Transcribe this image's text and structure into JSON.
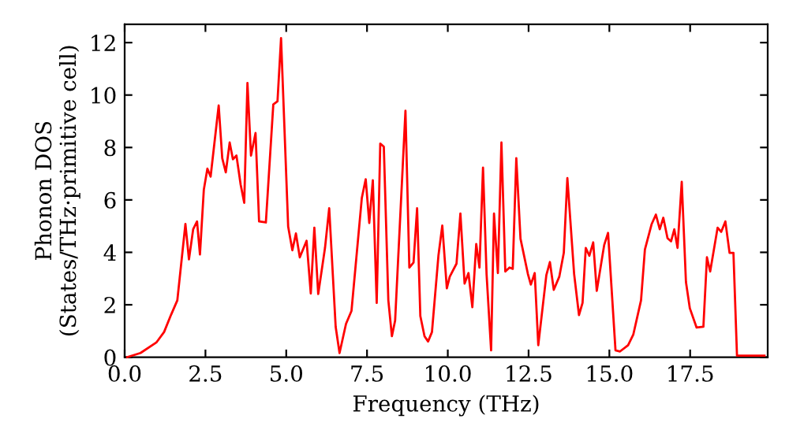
{
  "chart_data": {
    "type": "line",
    "xlabel": "Frequency (THz)",
    "ylabel": "Phonon DOS\n(States/THz·primitive cell)",
    "xlim": [
      0,
      19.9
    ],
    "ylim": [
      0,
      12.7
    ],
    "xticks": [
      {
        "value": 0,
        "label": "0.0"
      },
      {
        "value": 2.5,
        "label": "2.5"
      },
      {
        "value": 5,
        "label": "5.0"
      },
      {
        "value": 7.5,
        "label": "7.5"
      },
      {
        "value": 10,
        "label": "10.0"
      },
      {
        "value": 12.5,
        "label": "12.5"
      },
      {
        "value": 15,
        "label": "15.0"
      },
      {
        "value": 17.5,
        "label": "17.5"
      }
    ],
    "yticks": [
      0,
      2,
      4,
      6,
      8,
      10,
      12
    ],
    "grid": false,
    "marker": "none",
    "line_style": "solid",
    "series": [
      {
        "color": "#ff0000",
        "x": [
          0.08,
          0.49,
          0.98,
          1.22,
          1.44,
          1.63,
          1.88,
          1.99,
          2.12,
          2.24,
          2.33,
          2.45,
          2.56,
          2.66,
          2.91,
          3.02,
          3.13,
          3.25,
          3.35,
          3.46,
          3.59,
          3.7,
          3.8,
          3.91,
          4.05,
          4.16,
          4.37,
          4.6,
          4.73,
          4.84,
          5.06,
          5.19,
          5.3,
          5.42,
          5.63,
          5.76,
          5.87,
          5.99,
          6.2,
          6.33,
          6.53,
          6.65,
          6.85,
          7.02,
          7.34,
          7.46,
          7.57,
          7.68,
          7.8,
          7.91,
          8.02,
          8.16,
          8.27,
          8.37,
          8.69,
          8.81,
          8.94,
          9.05,
          9.15,
          9.28,
          9.39,
          9.51,
          9.71,
          9.83,
          9.97,
          10.06,
          10.27,
          10.39,
          10.52,
          10.64,
          10.76,
          10.88,
          10.98,
          11.09,
          11.2,
          11.34,
          11.43,
          11.55,
          11.66,
          11.78,
          11.91,
          12.01,
          12.12,
          12.25,
          12.48,
          12.57,
          12.69,
          12.8,
          13.05,
          13.16,
          13.28,
          13.45,
          13.59,
          13.7,
          13.91,
          14.06,
          14.17,
          14.27,
          14.38,
          14.5,
          14.61,
          14.84,
          14.96,
          15.19,
          15.33,
          15.58,
          15.74,
          15.98,
          16.1,
          16.31,
          16.44,
          16.56,
          16.67,
          16.8,
          16.91,
          17.01,
          17.11,
          17.24,
          17.37,
          17.49,
          17.7,
          17.91,
          18.02,
          18.12,
          18.35,
          18.46,
          18.59,
          18.72,
          18.84,
          18.95,
          19.8
        ],
        "values": [
          0.0,
          0.16,
          0.56,
          0.96,
          1.63,
          2.17,
          5.08,
          3.73,
          4.88,
          5.18,
          3.92,
          6.39,
          7.19,
          6.89,
          9.6,
          7.59,
          7.05,
          8.19,
          7.55,
          7.69,
          6.58,
          5.89,
          10.46,
          7.69,
          8.55,
          5.18,
          5.14,
          9.64,
          9.76,
          12.17,
          4.98,
          4.08,
          4.72,
          3.81,
          4.44,
          2.43,
          4.94,
          2.41,
          4.17,
          5.68,
          1.16,
          0.16,
          1.27,
          1.77,
          6.08,
          6.79,
          5.12,
          6.75,
          2.07,
          8.15,
          8.03,
          2.17,
          0.8,
          1.4,
          9.4,
          3.42,
          3.61,
          5.68,
          1.57,
          0.8,
          0.6,
          0.96,
          3.87,
          5.02,
          2.63,
          3.07,
          3.57,
          5.48,
          2.81,
          3.21,
          1.91,
          4.32,
          3.42,
          7.23,
          3.17,
          0.26,
          5.48,
          3.21,
          8.19,
          3.27,
          3.42,
          3.37,
          7.59,
          4.52,
          3.17,
          2.77,
          3.21,
          0.46,
          3.13,
          3.63,
          2.57,
          3.07,
          3.98,
          6.83,
          3.17,
          1.61,
          2.07,
          4.17,
          3.87,
          4.38,
          2.53,
          4.28,
          4.74,
          0.26,
          0.22,
          0.46,
          0.86,
          2.17,
          4.11,
          5.08,
          5.44,
          4.88,
          5.32,
          4.54,
          4.42,
          4.88,
          4.17,
          6.69,
          2.87,
          1.87,
          1.13,
          1.16,
          3.81,
          3.27,
          4.94,
          4.78,
          5.18,
          3.98,
          3.98,
          0.06,
          0.06
        ]
      }
    ]
  }
}
